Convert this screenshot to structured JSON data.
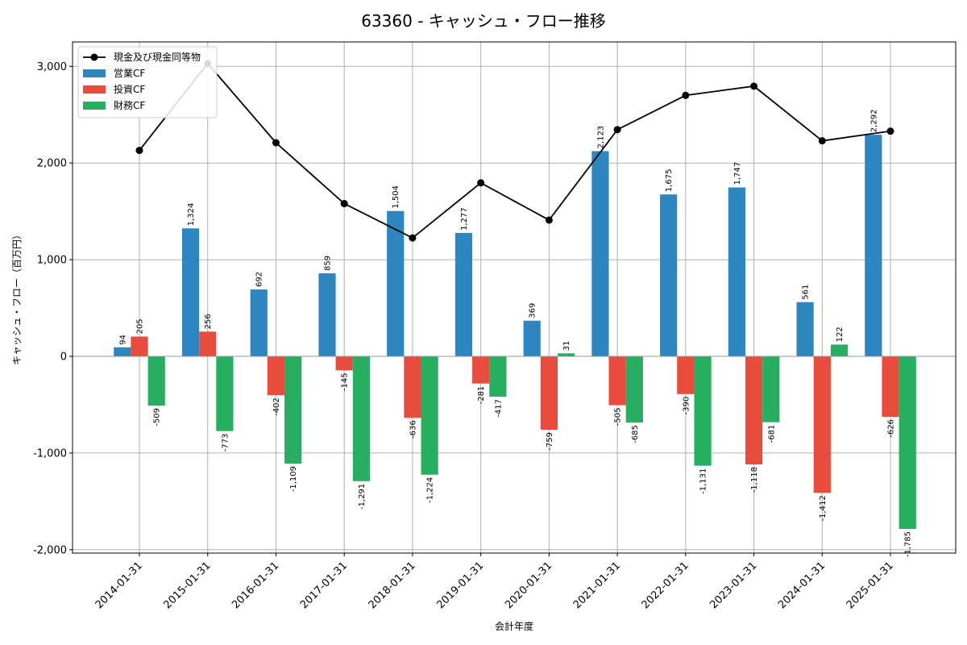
{
  "chart_data": {
    "type": "bar",
    "title": "63360 - キャッシュ・フロー推移",
    "xlabel": "会計年度",
    "ylabel": "キャッシュ・フロー（百万円）",
    "ylim": [
      -2000,
      3300
    ],
    "yticks": [
      -2000,
      -1000,
      0,
      1000,
      2000,
      3000
    ],
    "ytick_labels": [
      "-2,000",
      "-1,000",
      "0",
      "1,000",
      "2,000",
      "3,000"
    ],
    "grid": true,
    "legend_position": "top-left",
    "categories": [
      "2014-01-31",
      "2015-01-31",
      "2016-01-31",
      "2017-01-31",
      "2018-01-31",
      "2019-01-31",
      "2020-01-31",
      "2021-01-31",
      "2022-01-31",
      "2023-01-31",
      "2024-01-31",
      "2025-01-31"
    ],
    "series": [
      {
        "name": "営業CF",
        "kind": "bar",
        "color": "#2e86c1",
        "values": [
          94,
          1324,
          692,
          859,
          1504,
          1277,
          369,
          2123,
          1675,
          1747,
          561,
          2292
        ],
        "labels": [
          "94",
          "1,324",
          "692",
          "859",
          "1,504",
          "1,277",
          "369",
          "2,123",
          "1,675",
          "1,747",
          "561",
          "2,292"
        ]
      },
      {
        "name": "投資CF",
        "kind": "bar",
        "color": "#e74c3c",
        "values": [
          205,
          256,
          -402,
          -145,
          -636,
          -281,
          -759,
          -505,
          -390,
          -1118,
          -1412,
          -626
        ],
        "labels": [
          "205",
          "256",
          "-402",
          "-145",
          "-636",
          "-281",
          "-759",
          "-505",
          "-390",
          "-1,118",
          "-1,412",
          "-626"
        ]
      },
      {
        "name": "財務CF",
        "kind": "bar",
        "color": "#27ae60",
        "values": [
          -509,
          -773,
          -1109,
          -1291,
          -1224,
          -417,
          31,
          -685,
          -1131,
          -681,
          122,
          -1785
        ],
        "labels": [
          "-509",
          "-773",
          "-1,109",
          "-1,291",
          "-1,224",
          "-417",
          "31",
          "-685",
          "-1,131",
          "-681",
          "122",
          "-1,785"
        ]
      },
      {
        "name": "現金及び現金同等物",
        "kind": "line",
        "color": "#000000",
        "values": [
          2130,
          3030,
          2210,
          1580,
          1225,
          1795,
          1410,
          2345,
          2700,
          2795,
          2230,
          2330
        ]
      }
    ]
  }
}
